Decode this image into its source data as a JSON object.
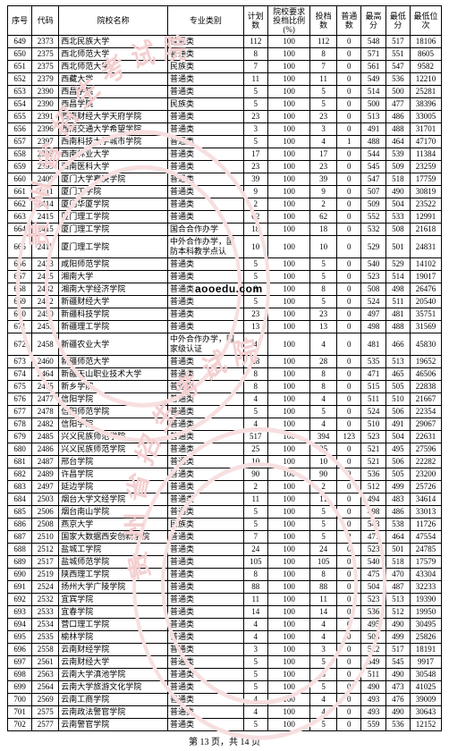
{
  "table": {
    "headers": [
      "序号",
      "代码",
      "院校名称",
      "专业类别",
      "计划数",
      "院校要求投档比例(%)",
      "投档数",
      "普通数",
      "最高分",
      "最低分",
      "最低位次"
    ],
    "rows": [
      [
        "649",
        "2373",
        "西北民族大学",
        "普通类",
        "112",
        "100",
        "112",
        "0",
        "548",
        "517",
        "18106"
      ],
      [
        "650",
        "2375",
        "西北师范大学",
        "普通类",
        "8",
        "100",
        "8",
        "0",
        "571",
        "551",
        "8605"
      ],
      [
        "651",
        "2375",
        "西北师范大学",
        "民族类",
        "7",
        "100",
        "7",
        "0",
        "561",
        "547",
        "9582"
      ],
      [
        "652",
        "2379",
        "西藏大学",
        "普通类",
        "11",
        "100",
        "11",
        "0",
        "549",
        "536",
        "12210"
      ],
      [
        "653",
        "2390",
        "西昌学院",
        "普通类",
        "5",
        "100",
        "5",
        "0",
        "514",
        "500",
        "25281"
      ],
      [
        "654",
        "2390",
        "西昌学院",
        "民族类",
        "5",
        "100",
        "5",
        "0",
        "500",
        "477",
        "38396"
      ],
      [
        "655",
        "2391",
        "西南财经大学天府学院",
        "普通类",
        "23",
        "100",
        "23",
        "0",
        "513",
        "486",
        "33005"
      ],
      [
        "656",
        "2396",
        "西南交通大学希望学院",
        "普通类",
        "3",
        "100",
        "3",
        "0",
        "491",
        "488",
        "31701"
      ],
      [
        "657",
        "2397",
        "西南科技大学城市学院",
        "普通类",
        "5",
        "100",
        "4",
        "1",
        "488",
        "464",
        "47170"
      ],
      [
        "658",
        "2398",
        "西南林业大学",
        "普通类",
        "17",
        "100",
        "17",
        "0",
        "544",
        "539",
        "11384"
      ],
      [
        "659",
        "2399",
        "西南医科大学",
        "普通类",
        "23",
        "100",
        "23",
        "0",
        "545",
        "509",
        "23259"
      ],
      [
        "660",
        "2409",
        "厦门大学嘉庚学院",
        "普通类",
        "39",
        "100",
        "39",
        "0",
        "547",
        "518",
        "17759"
      ],
      [
        "661",
        "2411",
        "厦门工学院",
        "普通类",
        "9",
        "100",
        "9",
        "0",
        "507",
        "490",
        "30819"
      ],
      [
        "662",
        "2414",
        "厦门华厦学院",
        "普通类",
        "2",
        "100",
        "2",
        "0",
        "509",
        "504",
        "23522"
      ],
      [
        "663",
        "2415",
        "厦门理工学院",
        "普通类",
        "62",
        "100",
        "62",
        "0",
        "552",
        "533",
        "12991"
      ],
      [
        "664",
        "2415",
        "厦门理工学院",
        "国合合作办学",
        "18",
        "100",
        "18",
        "0",
        "532",
        "508",
        "21618"
      ],
      [
        "665",
        "2415",
        "厦门理工学院",
        "中外合作办学，国防本科教学点认",
        "10",
        "100",
        "10",
        "0",
        "529",
        "501",
        "24831"
      ],
      [
        "666",
        "2423",
        "咸阳师范学院",
        "普通类",
        "5",
        "100",
        "5",
        "0",
        "540",
        "529",
        "14102"
      ],
      [
        "667",
        "2425",
        "湘南大学",
        "普通类",
        "5",
        "100",
        "5",
        "0",
        "523",
        "514",
        "19017"
      ],
      [
        "668",
        "2432",
        "湘南大学经济学院",
        "普通类",
        "8",
        "100",
        "8",
        "0",
        "508",
        "498",
        "26476"
      ],
      [
        "669",
        "2442",
        "新疆财经大学",
        "普通类",
        "5",
        "100",
        "5",
        "0",
        "524",
        "511",
        "20540"
      ],
      [
        "670",
        "2450",
        "新疆科技学院",
        "普通类",
        "23",
        "100",
        "23",
        "0",
        "497",
        "481",
        "35751"
      ],
      [
        "671",
        "2455",
        "新疆理工学院",
        "普通类",
        "13",
        "100",
        "13",
        "0",
        "498",
        "488",
        "31569"
      ],
      [
        "672",
        "2458",
        "新疆农业大学",
        "中外合作办学，国家级认证",
        "4",
        "100",
        "4",
        "0",
        "481",
        "466",
        "45830"
      ],
      [
        "673",
        "2460",
        "新疆师范大学",
        "普通类",
        "28",
        "100",
        "28",
        "0",
        "535",
        "513",
        "19652"
      ],
      [
        "674",
        "2464",
        "新疆天山职业技术大学",
        "普通类",
        "8",
        "100",
        "8",
        "0",
        "471",
        "465",
        "46506"
      ],
      [
        "675",
        "2475",
        "新乡学院",
        "普通类",
        "8",
        "100",
        "8",
        "0",
        "515",
        "505",
        "22838"
      ],
      [
        "676",
        "2477",
        "信阳学院",
        "普通类",
        "4",
        "100",
        "4",
        "0",
        "511",
        "510",
        "21667"
      ],
      [
        "677",
        "2478",
        "信阳师范学院",
        "普通类",
        "5",
        "100",
        "5",
        "0",
        "524",
        "506",
        "22354"
      ],
      [
        "678",
        "2482",
        "信阳学院",
        "普通类",
        "4",
        "100",
        "4",
        "0",
        "510",
        "491",
        "29067"
      ],
      [
        "679",
        "2485",
        "兴义民族师范学院",
        "普通类",
        "517",
        "100",
        "394",
        "123",
        "523",
        "504",
        "22631"
      ],
      [
        "680",
        "2486",
        "兴义民族师范学院",
        "普通类",
        "25",
        "100",
        "25",
        "0",
        "521",
        "495",
        "27596"
      ],
      [
        "681",
        "2487",
        "邢台学院",
        "普通类",
        "10",
        "100",
        "10",
        "0",
        "521",
        "506",
        "22282"
      ],
      [
        "682",
        "2489",
        "许昌学院",
        "普通类",
        "90",
        "100",
        "90",
        "0",
        "536",
        "505",
        "23200"
      ],
      [
        "683",
        "2497",
        "延边学院",
        "普通类",
        "2",
        "100",
        "2",
        "0",
        "512",
        "499",
        "25726"
      ],
      [
        "684",
        "2503",
        "烟台大学文经学院",
        "普通类",
        "11",
        "100",
        "11",
        "0",
        "494",
        "483",
        "34614"
      ],
      [
        "685",
        "2506",
        "烟台南山学院",
        "普通类",
        "5",
        "100",
        "5",
        "0",
        "498",
        "486",
        "33013"
      ],
      [
        "686",
        "2508",
        "燕京大学",
        "民族类",
        "5",
        "100",
        "5",
        "0",
        "543",
        "538",
        "11726"
      ],
      [
        "687",
        "2510",
        "国家大数据西安创新学院",
        "普通类",
        "7",
        "100",
        "5",
        "2",
        "477",
        "464",
        "47554"
      ],
      [
        "688",
        "2512",
        "盐城工学院",
        "普通类",
        "24",
        "100",
        "24",
        "0",
        "523",
        "501",
        "24785"
      ],
      [
        "689",
        "2517",
        "盐城师范学院",
        "普通类",
        "105",
        "100",
        "105",
        "0",
        "540",
        "518",
        "17579"
      ],
      [
        "690",
        "2519",
        "陕西理工学院",
        "普通类",
        "8",
        "100",
        "8",
        "0",
        "475",
        "470",
        "43304"
      ],
      [
        "691",
        "2524",
        "扬州大学广陵学院",
        "普通类",
        "88",
        "100",
        "88",
        "0",
        "504",
        "487",
        "32233"
      ],
      [
        "692",
        "2532",
        "宜宾学院",
        "普通类",
        "11",
        "100",
        "11",
        "0",
        "523",
        "513",
        "19390"
      ],
      [
        "693",
        "2533",
        "宜春学院",
        "普通类",
        "14",
        "100",
        "14",
        "0",
        "536",
        "512",
        "19950"
      ],
      [
        "694",
        "2534",
        "营口理工学院",
        "普通类",
        "4",
        "100",
        "4",
        "0",
        "495",
        "490",
        "30495"
      ],
      [
        "695",
        "2535",
        "榆林学院",
        "普通类",
        "4",
        "100",
        "4",
        "0",
        "503",
        "499",
        "25826"
      ],
      [
        "696",
        "2558",
        "云南财经学院",
        "普通类",
        "3",
        "100",
        "3",
        "0",
        "522",
        "517",
        "18191"
      ],
      [
        "697",
        "2561",
        "云南财经大学",
        "普通类",
        "5",
        "100",
        "5",
        "0",
        "549",
        "545",
        "9917"
      ],
      [
        "698",
        "2563",
        "云南大学滇池学院",
        "普通类",
        "5",
        "100",
        "5",
        "0",
        "511",
        "490",
        "30548"
      ],
      [
        "699",
        "2564",
        "云南大学旅游文化学院",
        "普通类",
        "5",
        "100",
        "5",
        "0",
        "490",
        "473",
        "41025"
      ],
      [
        "700",
        "2569",
        "云南工商学院",
        "普通类",
        "4",
        "100",
        "4",
        "0",
        "493",
        "476",
        "39009"
      ],
      [
        "701",
        "2575",
        "云南政法警官学院",
        "普通类",
        "4",
        "100",
        "4",
        "0",
        "493",
        "490",
        "30643"
      ],
      [
        "702",
        "2577",
        "云南警官学院",
        "普通类",
        "5",
        "100",
        "5",
        "0",
        "559",
        "536",
        "12152"
      ]
    ],
    "footer": "第 13 页，共 14 页"
  },
  "overlay": {
    "text": "aooedu.com"
  },
  "watermark": {
    "ring_color": "#f7dfe0",
    "text1": "贵州省招生考试院",
    "text2": "贵州省招生考试院"
  }
}
